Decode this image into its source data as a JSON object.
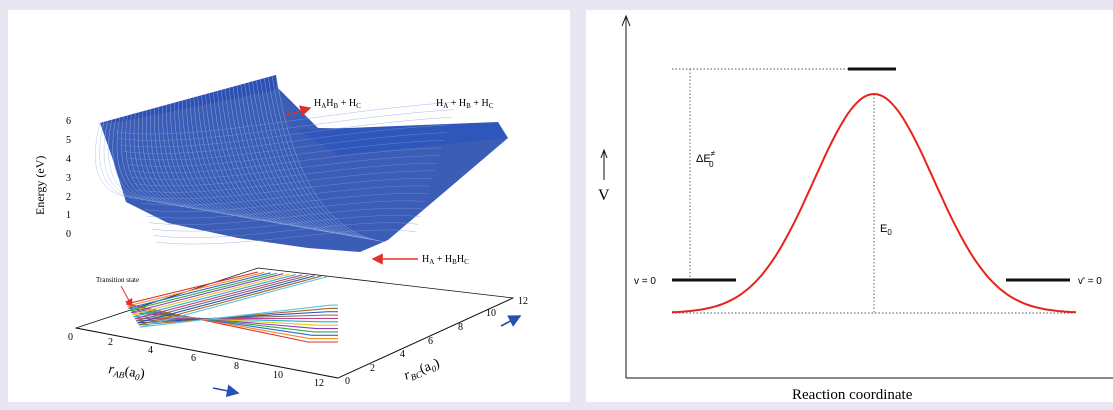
{
  "left_panel": {
    "energy_axis_label": "Energy (eV)",
    "energy_ticks": [
      "6",
      "5",
      "4",
      "3",
      "2",
      "1",
      "0"
    ],
    "rab_axis_label": "r",
    "rab_axis_sub": "AB",
    "rab_axis_unit": "(a",
    "rab_axis_unit_sub": "0",
    "rab_axis_unit_end": ")",
    "rbc_axis_label": "r",
    "rbc_axis_sub": "BC",
    "rbc_axis_unit": "(a",
    "rbc_axis_unit_sub": "0",
    "rbc_axis_unit_end": ")",
    "rab_ticks": [
      "0",
      "2",
      "4",
      "6",
      "8",
      "10",
      "12"
    ],
    "rbc_ticks": [
      "0",
      "2",
      "4",
      "6",
      "8",
      "10",
      "12"
    ],
    "transition_state_label": "Transition state",
    "label_top_left": {
      "main": "H",
      "s1": "A",
      "m2": "H",
      "s2": "B",
      "m3": " + H",
      "s3": "C"
    },
    "label_top_right": {
      "main": "H",
      "s1": "A",
      "m2": " + H",
      "s2": "B",
      "m3": " + H",
      "s3": "C"
    },
    "label_bottom": {
      "main": "H",
      "s1": "A",
      "m2": " + H",
      "s2": "B",
      "m3": "H",
      "s3": "C"
    },
    "surface_color": "#2a4fb0",
    "arrow_color": "#e0302a"
  },
  "right_panel": {
    "y_axis_label": "V",
    "x_axis_label": "Reaction coordinate",
    "delta_e_label": "ΔE",
    "delta_e_sup": "≠",
    "delta_e_sub": "0",
    "e0_label": "E",
    "e0_sub": "0",
    "v_left_label": "v = 0",
    "v_right_label": "v' = 0",
    "curve_color": "#e8231c"
  }
}
